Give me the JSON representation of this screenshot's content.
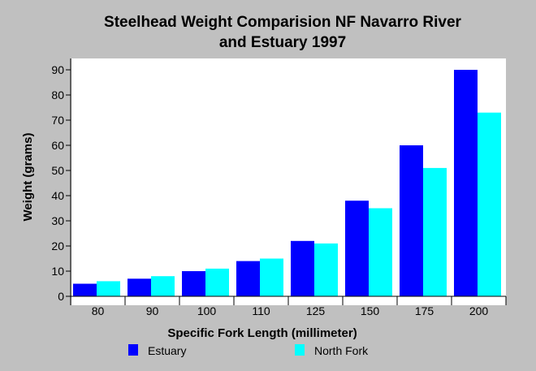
{
  "chart_data": {
    "type": "bar",
    "title": "Steelhead Weight Comparision NF Navarro River",
    "subtitle": "and Estuary 1997",
    "xlabel": "Specific Fork Length (millimeter)",
    "ylabel": "Weight (grams)",
    "categories": [
      "80",
      "90",
      "100",
      "110",
      "125",
      "150",
      "175",
      "200"
    ],
    "ylim": [
      0,
      90
    ],
    "yticks": [
      0,
      10,
      20,
      30,
      40,
      50,
      60,
      70,
      80,
      90
    ],
    "grid": false,
    "legend_position": "bottom",
    "series": [
      {
        "name": "Estuary",
        "color": "#0000ff",
        "values": [
          5,
          7,
          10,
          14,
          22,
          38,
          60,
          90
        ]
      },
      {
        "name": "North Fork",
        "color": "#00ffff",
        "values": [
          6,
          8,
          11,
          15,
          21,
          35,
          51,
          73
        ]
      }
    ]
  },
  "colors": {
    "background": "#c0c0c0",
    "plot_background": "#ffffff"
  }
}
